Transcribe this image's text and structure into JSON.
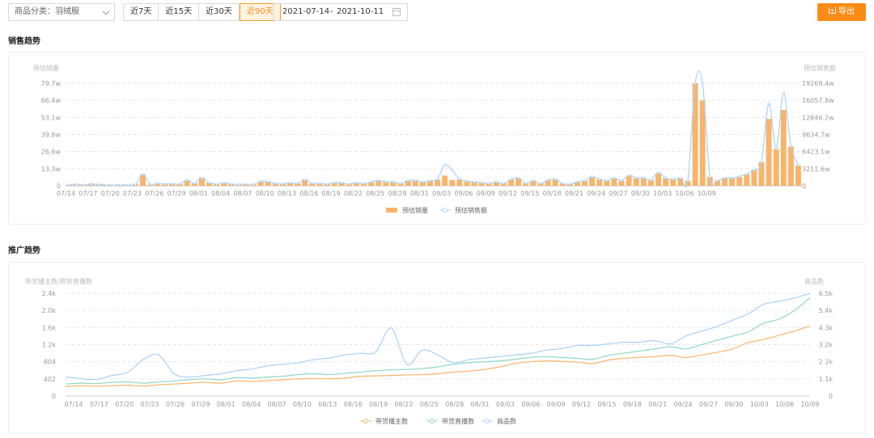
{
  "toolbar": {
    "category_select": "商品分类：羽绒服",
    "ranges": [
      "近7天",
      "近15天",
      "近30天",
      "近90天"
    ],
    "active_range": "近90天",
    "date_start": "2021-07-14",
    "date_sep": "-",
    "date_end": "2021-10-11",
    "export_label": "导出",
    "accent_color": "#fa8c16"
  },
  "sales": {
    "section_title": "销售趋势",
    "chart_data": {
      "type": "bar",
      "title": "",
      "ylabel_left": "预估销量",
      "ylabel_right": "预估销售额",
      "yticks_left": [
        "0",
        "13.3w",
        "26.6w",
        "39.8w",
        "53.1w",
        "66.4w",
        "79.7w"
      ],
      "yticks_right": [
        "0",
        "3211.6w",
        "6423.1w",
        "9634.7w",
        "12846.2w",
        "16057.8w",
        "19269.4w"
      ],
      "ylim_left": [
        0,
        79.7
      ],
      "ylim_right": [
        0,
        19269.4
      ],
      "x_tick_labels": [
        "07/14",
        "07/17",
        "07/20",
        "07/23",
        "07/26",
        "07/29",
        "08/01",
        "08/04",
        "08/07",
        "08/10",
        "08/13",
        "08/16",
        "08/19",
        "08/22",
        "08/25",
        "08/28",
        "08/31",
        "09/03",
        "09/06",
        "09/09",
        "09/12",
        "09/15",
        "09/18",
        "09/21",
        "09/24",
        "09/27",
        "09/30",
        "10/03",
        "10/06",
        "10/09"
      ],
      "legend": [
        "预估销量",
        "预估销售额"
      ],
      "legend_position": "bottom",
      "series_colors": [
        "#f9b46b",
        "#a9d1f7"
      ],
      "bars_units": "w",
      "line_units": "w",
      "bars": [
        1,
        1.5,
        1,
        2,
        1.5,
        1,
        1,
        1,
        1,
        1.5,
        9,
        1,
        2,
        1.5,
        2,
        1.5,
        4.5,
        2,
        6.5,
        2.5,
        1.5,
        2.5,
        1.5,
        1,
        1.5,
        1,
        3.5,
        3.5,
        2,
        1.5,
        2.5,
        2,
        5,
        2,
        2,
        1.5,
        2.5,
        2.5,
        1.5,
        2.5,
        2,
        3,
        4,
        3,
        3,
        2,
        4,
        4,
        3,
        4,
        5,
        8,
        4.5,
        5,
        3.5,
        3,
        2.5,
        2,
        3,
        2,
        5,
        6,
        2,
        4,
        2,
        4.5,
        5,
        2,
        1.5,
        3,
        4,
        7,
        5,
        4,
        6,
        4,
        8,
        6,
        6,
        4.5,
        10,
        6,
        5,
        6,
        4,
        79.7,
        66.4,
        7,
        4,
        6,
        6,
        7,
        9,
        12.5,
        18.5,
        52,
        28.5,
        59,
        30.5,
        16
      ],
      "line": [
        200,
        250,
        180,
        300,
        250,
        180,
        150,
        200,
        180,
        250,
        2200,
        300,
        450,
        350,
        400,
        350,
        1100,
        450,
        1500,
        600,
        350,
        550,
        350,
        250,
        350,
        250,
        850,
        800,
        450,
        350,
        600,
        450,
        1150,
        450,
        450,
        350,
        600,
        600,
        350,
        600,
        450,
        750,
        1000,
        750,
        750,
        450,
        1000,
        1050,
        750,
        1000,
        1250,
        3900,
        2900,
        1300,
        900,
        750,
        600,
        450,
        750,
        450,
        1250,
        1500,
        450,
        1000,
        450,
        1100,
        1250,
        450,
        350,
        750,
        1000,
        1750,
        1250,
        1000,
        1500,
        1000,
        2000,
        1500,
        1500,
        1100,
        2500,
        1500,
        1250,
        1500,
        1000,
        19269,
        19269,
        1700,
        1000,
        1500,
        1500,
        1750,
        2250,
        3000,
        4500,
        15500,
        7000,
        17500,
        7500,
        3900
      ]
    }
  },
  "promo": {
    "section_title": "推广趋势",
    "chart_data": {
      "type": "line",
      "title": "",
      "ylabel_left": "带货播主数/带货直播数",
      "ylabel_right": "商品数",
      "yticks_left": [
        "0",
        "402",
        "804",
        "1.2k",
        "1.6k",
        "2.0k",
        "2.4k"
      ],
      "yticks_right": [
        "0",
        "1.1k",
        "2.2k",
        "3.2k",
        "4.3k",
        "5.4k",
        "6.5k"
      ],
      "ylim_left": [
        0,
        2400
      ],
      "ylim_right": [
        0,
        6500
      ],
      "x_tick_labels": [
        "07/14",
        "07/17",
        "07/20",
        "07/23",
        "07/26",
        "07/29",
        "08/01",
        "08/04",
        "08/07",
        "08/10",
        "08/13",
        "08/16",
        "08/19",
        "08/22",
        "08/25",
        "08/28",
        "08/31",
        "09/03",
        "09/06",
        "09/09",
        "09/12",
        "09/15",
        "09/18",
        "09/21",
        "09/24",
        "09/27",
        "09/30",
        "10/03",
        "10/06",
        "10/09"
      ],
      "legend": [
        "带货播主数",
        "带货直播数",
        "商品数"
      ],
      "legend_position": "bottom",
      "series": [
        {
          "name": "带货播主数",
          "color": "#f9b46b",
          "values": [
            220,
            240,
            230,
            240,
            250,
            230,
            260,
            280,
            300,
            320,
            300,
            350,
            340,
            360,
            380,
            400,
            410,
            400,
            420,
            460,
            470,
            480,
            490,
            500,
            520,
            560,
            580,
            620,
            680,
            760,
            800,
            820,
            810,
            790,
            760,
            840,
            880,
            900,
            920,
            950,
            900,
            960,
            1020,
            1100,
            1250,
            1320,
            1420,
            1520,
            1640
          ]
        },
        {
          "name": "带货直播数",
          "color": "#8fd8c8",
          "values": [
            280,
            300,
            290,
            320,
            330,
            300,
            330,
            350,
            380,
            400,
            380,
            430,
            420,
            440,
            460,
            500,
            520,
            500,
            530,
            560,
            590,
            610,
            620,
            640,
            680,
            740,
            780,
            800,
            820,
            860,
            900,
            920,
            900,
            880,
            860,
            950,
            1000,
            1050,
            1100,
            1150,
            1100,
            1200,
            1300,
            1400,
            1500,
            1700,
            1800,
            2000,
            2300
          ]
        },
        {
          "name": "商品数",
          "color": "#a9d1f7",
          "values": [
            1200,
            1100,
            1050,
            1300,
            1500,
            2300,
            2600,
            1400,
            1200,
            1300,
            1400,
            1600,
            1700,
            1900,
            2000,
            2100,
            2300,
            2400,
            2600,
            2700,
            2800,
            4300,
            2000,
            2900,
            2600,
            2100,
            2300,
            2400,
            2500,
            2600,
            2700,
            2900,
            3000,
            3200,
            3200,
            3300,
            3400,
            3400,
            3500,
            3300,
            3800,
            4100,
            4400,
            4800,
            5200,
            5800,
            6000,
            6200,
            6500
          ]
        }
      ]
    }
  }
}
